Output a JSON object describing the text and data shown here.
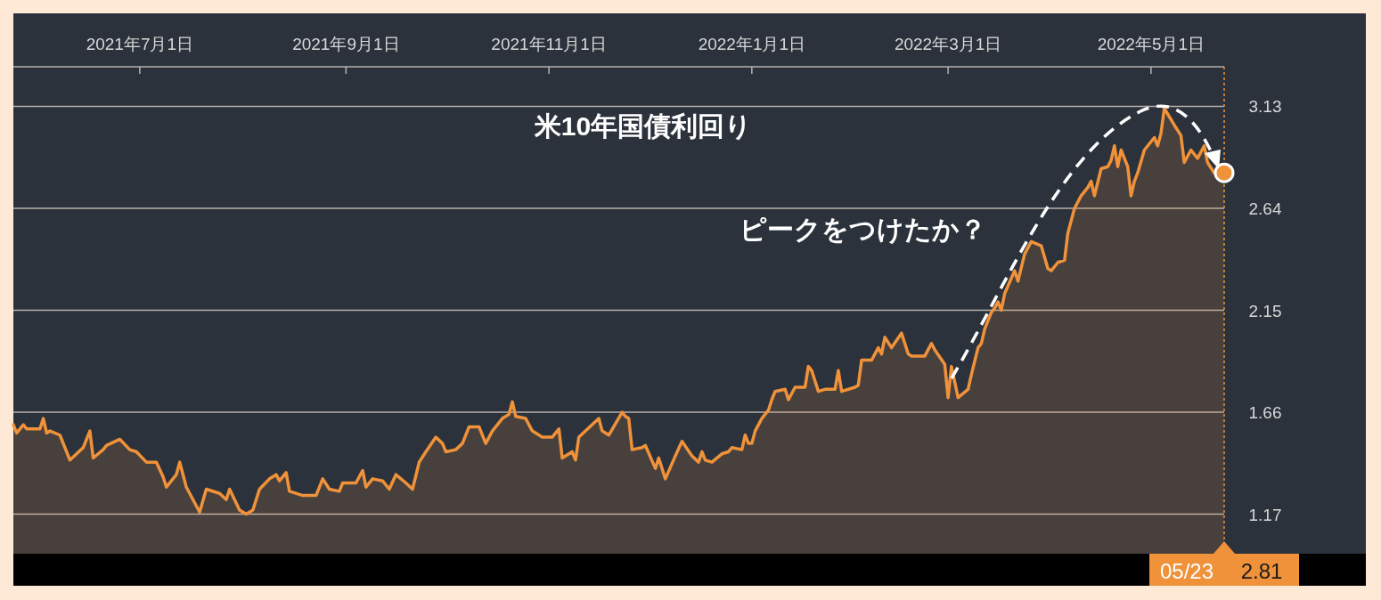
{
  "chart_data": {
    "type": "area",
    "title": "米10年国債利回り",
    "annotations": [
      "ピークをつけたか？",
      {
        "text": "05/23",
        "x": "2022-05-23"
      },
      "2.81"
    ],
    "xlim": [
      "2021-05-24",
      "2022-05-23"
    ],
    "xticks": [
      {
        "value": "2021-07-01",
        "label": "2021年7月1日"
      },
      {
        "value": "2021-09-01",
        "label": "2021年9月1日"
      },
      {
        "value": "2021-11-01",
        "label": "2021年11月1日"
      },
      {
        "value": "2022-01-01",
        "label": "2022年1月1日"
      },
      {
        "value": "2022-03-01",
        "label": "2022年3月1日"
      },
      {
        "value": "2022-05-01",
        "label": "2022年5月1日"
      }
    ],
    "ylim": [
      0.98,
      3.32
    ],
    "yticks": [
      1.17,
      1.66,
      2.15,
      2.64,
      3.13
    ],
    "grid": "y",
    "marker": "none",
    "line_style": "solid",
    "series": [
      {
        "color": "#f0923a",
        "x": [
          "2021-05-24",
          "2021-05-25",
          "2021-05-27",
          "2021-05-28",
          "2021-06-01",
          "2021-06-02",
          "2021-06-03",
          "2021-06-04",
          "2021-06-07",
          "2021-06-10",
          "2021-06-14",
          "2021-06-16",
          "2021-06-17",
          "2021-06-20",
          "2021-06-21",
          "2021-06-25",
          "2021-06-28",
          "2021-06-30",
          "2021-07-03",
          "2021-07-06",
          "2021-07-08",
          "2021-07-09",
          "2021-07-12",
          "2021-07-13",
          "2021-07-15",
          "2021-07-16",
          "2021-07-19",
          "2021-07-21",
          "2021-07-25",
          "2021-07-27",
          "2021-07-28",
          "2021-07-31",
          "2021-08-02",
          "2021-08-04",
          "2021-08-06",
          "2021-08-09",
          "2021-08-11",
          "2021-08-12",
          "2021-08-14",
          "2021-08-15",
          "2021-08-19",
          "2021-08-23",
          "2021-08-25",
          "2021-08-27",
          "2021-08-30",
          "2021-08-31",
          "2021-09-04",
          "2021-09-06",
          "2021-09-07",
          "2021-09-09",
          "2021-09-12",
          "2021-09-14",
          "2021-09-16",
          "2021-09-19",
          "2021-09-21",
          "2021-09-23",
          "2021-09-25",
          "2021-09-28",
          "2021-09-30",
          "2021-10-01",
          "2021-10-04",
          "2021-10-06",
          "2021-10-08",
          "2021-10-11",
          "2021-10-13",
          "2021-10-15",
          "2021-10-18",
          "2021-10-20",
          "2021-10-21",
          "2021-10-22",
          "2021-10-25",
          "2021-10-27",
          "2021-10-30",
          "2021-11-02",
          "2021-11-04",
          "2021-11-05",
          "2021-11-08",
          "2021-11-09",
          "2021-11-10",
          "2021-11-12",
          "2021-11-16",
          "2021-11-17",
          "2021-11-19",
          "2021-11-23",
          "2021-11-24",
          "2021-11-25",
          "2021-11-26",
          "2021-11-29",
          "2021-11-30",
          "2021-12-03",
          "2021-12-04",
          "2021-12-06",
          "2021-12-09",
          "2021-12-11",
          "2021-12-14",
          "2021-12-16",
          "2021-12-17",
          "2021-12-18",
          "2021-12-20",
          "2021-12-23",
          "2021-12-25",
          "2021-12-26",
          "2021-12-29",
          "2021-12-30",
          "2021-12-31",
          "2022-01-01",
          "2022-01-02",
          "2022-01-04",
          "2022-01-06",
          "2022-01-07",
          "2022-01-08",
          "2022-01-11",
          "2022-01-12",
          "2022-01-14",
          "2022-01-17",
          "2022-01-18",
          "2022-01-19",
          "2022-01-21",
          "2022-01-23",
          "2022-01-26",
          "2022-01-27",
          "2022-01-28",
          "2022-02-01",
          "2022-02-02",
          "2022-02-03",
          "2022-02-06",
          "2022-02-08",
          "2022-02-09",
          "2022-02-10",
          "2022-02-12",
          "2022-02-15",
          "2022-02-17",
          "2022-02-18",
          "2022-02-22",
          "2022-02-24",
          "2022-02-25",
          "2022-02-28",
          "2022-03-01",
          "2022-03-02",
          "2022-03-04",
          "2022-03-07",
          "2022-03-08",
          "2022-03-10",
          "2022-03-11",
          "2022-03-12",
          "2022-03-14",
          "2022-03-15",
          "2022-03-16",
          "2022-03-17",
          "2022-03-18",
          "2022-03-21",
          "2022-03-22",
          "2022-03-24",
          "2022-03-26",
          "2022-03-29",
          "2022-03-31",
          "2022-04-01",
          "2022-04-03",
          "2022-04-05",
          "2022-04-06",
          "2022-04-08",
          "2022-04-10",
          "2022-04-12",
          "2022-04-13",
          "2022-04-14",
          "2022-04-16",
          "2022-04-18",
          "2022-04-19",
          "2022-04-20",
          "2022-04-21",
          "2022-04-22",
          "2022-04-24",
          "2022-04-25",
          "2022-04-26",
          "2022-04-27",
          "2022-04-29",
          "2022-05-02",
          "2022-05-03",
          "2022-05-04",
          "2022-05-05",
          "2022-05-08",
          "2022-05-10",
          "2022-05-11",
          "2022-05-13",
          "2022-05-15",
          "2022-05-17",
          "2022-05-18",
          "2022-05-20",
          "2022-05-23"
        ],
        "values": [
          1.6,
          1.56,
          1.6,
          1.58,
          1.58,
          1.63,
          1.56,
          1.57,
          1.55,
          1.43,
          1.49,
          1.57,
          1.44,
          1.48,
          1.5,
          1.53,
          1.48,
          1.47,
          1.42,
          1.42,
          1.35,
          1.3,
          1.36,
          1.42,
          1.3,
          1.27,
          1.18,
          1.29,
          1.27,
          1.24,
          1.29,
          1.19,
          1.17,
          1.19,
          1.29,
          1.34,
          1.36,
          1.33,
          1.37,
          1.28,
          1.26,
          1.26,
          1.34,
          1.29,
          1.28,
          1.32,
          1.32,
          1.38,
          1.3,
          1.34,
          1.33,
          1.29,
          1.36,
          1.32,
          1.29,
          1.42,
          1.47,
          1.54,
          1.51,
          1.47,
          1.48,
          1.51,
          1.59,
          1.59,
          1.51,
          1.57,
          1.63,
          1.65,
          1.71,
          1.64,
          1.63,
          1.57,
          1.54,
          1.54,
          1.58,
          1.44,
          1.47,
          1.43,
          1.54,
          1.57,
          1.63,
          1.57,
          1.55,
          1.66,
          1.64,
          1.63,
          1.48,
          1.49,
          1.5,
          1.39,
          1.44,
          1.34,
          1.45,
          1.52,
          1.45,
          1.42,
          1.47,
          1.43,
          1.42,
          1.46,
          1.47,
          1.49,
          1.48,
          1.55,
          1.51,
          1.51,
          1.57,
          1.63,
          1.67,
          1.72,
          1.76,
          1.77,
          1.72,
          1.78,
          1.78,
          1.88,
          1.86,
          1.76,
          1.77,
          1.77,
          1.86,
          1.76,
          1.78,
          1.79,
          1.91,
          1.91,
          1.97,
          1.94,
          2.02,
          1.97,
          2.04,
          1.94,
          1.93,
          1.93,
          1.99,
          1.96,
          1.89,
          1.73,
          1.88,
          1.73,
          1.77,
          1.84,
          1.97,
          1.99,
          2.06,
          2.14,
          2.16,
          2.19,
          2.15,
          2.23,
          2.34,
          2.29,
          2.42,
          2.48,
          2.46,
          2.35,
          2.34,
          2.38,
          2.39,
          2.52,
          2.64,
          2.7,
          2.74,
          2.77,
          2.7,
          2.83,
          2.84,
          2.87,
          2.94,
          2.84,
          2.92,
          2.84,
          2.7,
          2.77,
          2.81,
          2.92,
          2.98,
          2.94,
          3.0,
          3.12,
          3.04,
          2.99,
          2.86,
          2.92,
          2.88,
          2.94,
          2.86,
          2.81,
          2.81
        ]
      }
    ]
  }
}
